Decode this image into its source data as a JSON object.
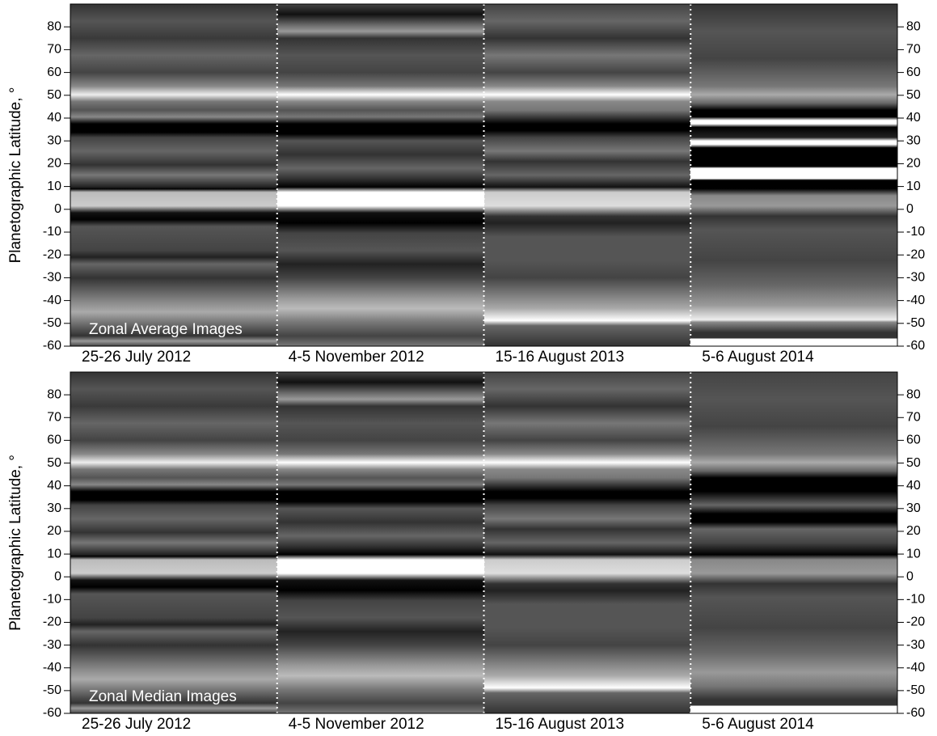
{
  "chart_data": [
    {
      "type": "image-strips",
      "annotation": "Zonal Average Images",
      "categories": [
        "25-26 July 2012",
        "4-5 November 2012",
        "15-16 August 2013",
        "5-6 August 2014"
      ],
      "ylabel": "Planetographic Latitude, °",
      "ylim": [
        -60,
        90
      ],
      "yticks": [
        -60,
        -50,
        -40,
        -30,
        -20,
        -10,
        0,
        10,
        20,
        30,
        40,
        50,
        60,
        70,
        80
      ]
    },
    {
      "type": "image-strips",
      "annotation": "Zonal Median Images",
      "categories": [
        "25-26 July 2012",
        "4-5 November 2012",
        "15-16 August 2013",
        "5-6 August 2014"
      ],
      "ylabel": "Planetographic Latitude, °",
      "ylim": [
        -60,
        90
      ],
      "yticks": [
        -60,
        -50,
        -40,
        -30,
        -20,
        -10,
        0,
        10,
        20,
        30,
        40,
        50,
        60,
        70,
        80
      ]
    }
  ]
}
